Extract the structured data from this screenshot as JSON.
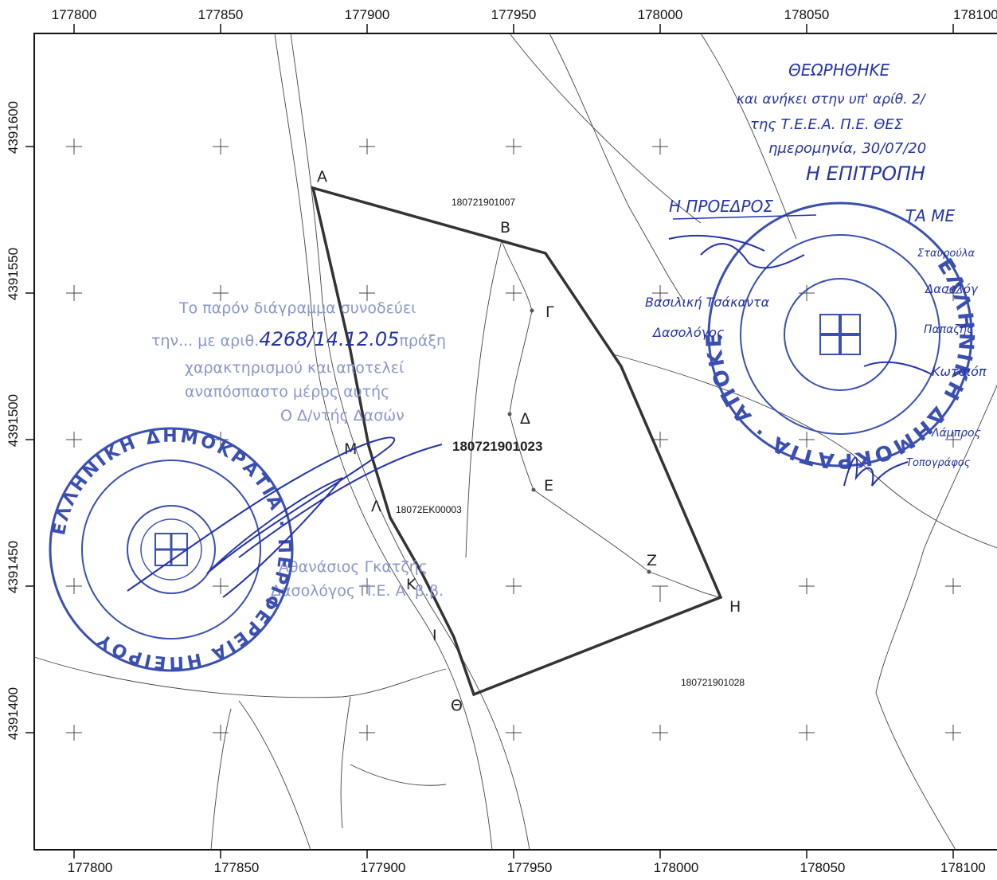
{
  "axes": {
    "x_ticks": [
      "177800",
      "177850",
      "177900",
      "177950",
      "178000",
      "178050",
      "178100"
    ],
    "y_ticks": [
      "4391550",
      "4391500",
      "4391450",
      "4391400"
    ],
    "y_top_label": "4391600"
  },
  "parcels": {
    "main": "180721901023",
    "north": "180721901007",
    "east": "180721901028",
    "road": "18072EK00003"
  },
  "points": [
    "Α",
    "Β",
    "Γ",
    "Δ",
    "Ε",
    "Ζ",
    "Η",
    "Θ",
    "Ι",
    "Κ",
    "Λ",
    "Μ"
  ],
  "handwritten": {
    "line1": "ΘΕΩΡΗΘΗΚΕ",
    "line2": "και ανήκει στην υπ' αρίθ. 2/",
    "line3": "της Τ.Ε.Ε.Α. Π.Ε. ΘΕΣ",
    "line4": "ημερομηνία, 30/07/20",
    "line5": "Η ΕΠΙΤΡΟΠΗ",
    "line6": "Η ΠΡΟΕΔΡΟΣ",
    "line7": "ΤΑ ΜΕ",
    "name1": "Βασιλική Τσάκαντα",
    "name1_role": "Δασολόγος",
    "name2": "Σταυρούλα",
    "name2_role": "Δασολόγ",
    "name3": "Παπαζής",
    "name4": "Κωτσιόπ",
    "name5": "Λάμπρος",
    "name5_role": "Τοπογράφος"
  },
  "forestry_stamp": {
    "line1": "Το παρόν διάγραμμα συνοδεύει",
    "line2": "την... με αριθ.",
    "line2_num": "4268/14.12.05",
    "line2_end": "πράξη",
    "line3": "χαρακτηρισμού και αποτελεί",
    "line4": "αναπόσπαστο μέρος αυτής",
    "line5": "Ο Δ/ντής Δασών",
    "sig_name": "Αθανάσιος Γκατζής",
    "sig_title": "Δασολόγος Π.Ε. Α' β.β."
  },
  "seal_left": {
    "text": "ΕΛΛΗΝΙΚΗ ΔΗΜΟΚΡΑΤΙΑ · ΠΕΡΙΦΕΡΕΙΑ ΗΠΕΙΡΟΥ"
  },
  "seal_right": {
    "text": "ΕΛΛΗΝΙΚΗ ΔΗΜΟΚΡΑΤΙΑ · ΑΠΟΚΕΝΤΡΩΜΕΝΗ ΔΙΟΙΚΗΣΗ ΗΠΕΙΡΟΥ"
  },
  "colors": {
    "ink": "#2433a8",
    "stamp": "#3a4fb0",
    "boundary": "#333333",
    "frame": "#111111"
  }
}
